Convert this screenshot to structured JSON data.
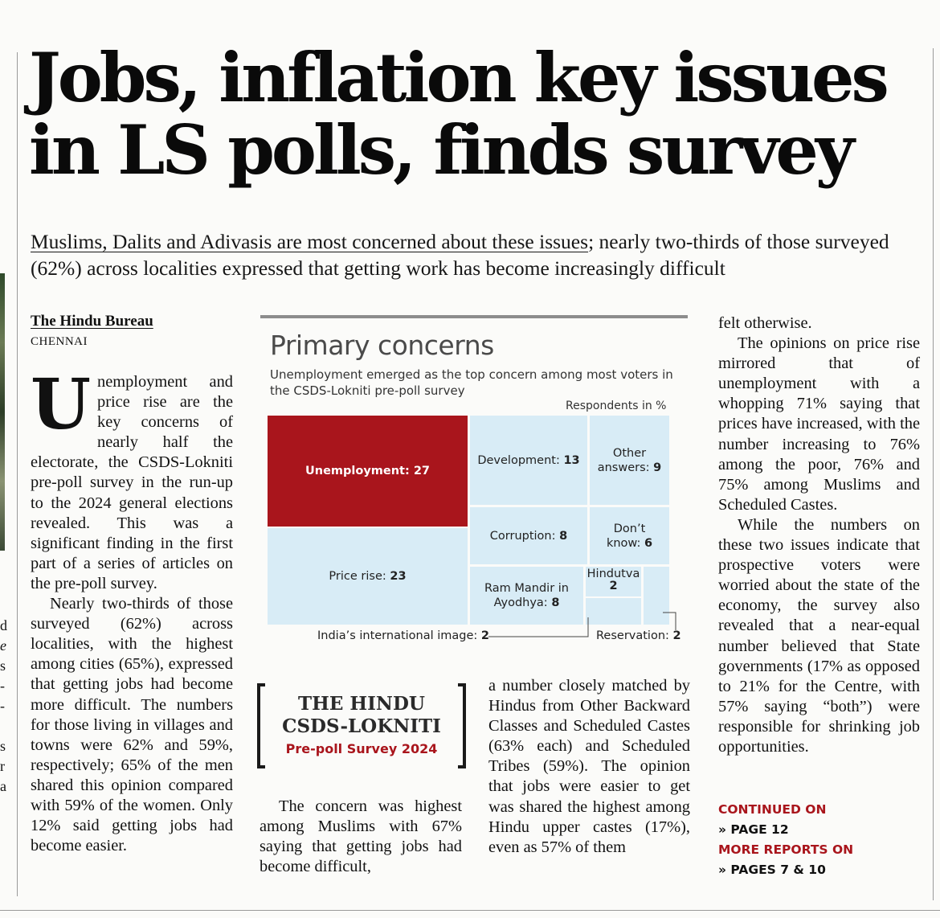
{
  "headline": {
    "line1": "Jobs, inflation key issues",
    "line2": "in LS polls, finds survey"
  },
  "deck": {
    "underlined": "Muslims, Dalits and Adivasis are most concerned about these issues",
    "rest": "; nearly two-thirds of those surveyed (62%) across localities expressed that getting work has become increasingly difficult"
  },
  "byline": "The Hindu Bureau",
  "dateline": "CHENNAI",
  "left_edge_fragments": [
    "d",
    "e",
    "s",
    "-",
    "-",
    "s",
    "r",
    "a"
  ],
  "col1": {
    "dropcap": "U",
    "p1": "nemployment and price rise are the key concerns of nearly half the electorate, the CSDS-Lokniti pre-poll survey in the run-up to the 2024 general elections revealed. This was a significant finding in the first part of a series of articles on the pre-poll survey.",
    "p2": "Nearly two-thirds of those surveyed (62%) across localities, with the highest among cities (65%), expressed that getting jobs had become more difficult. The numbers for those living in villages and towns were 62% and 59%, respectively; 65% of the men shared this opinion compared with 59% of the women. Only 12% said getting jobs had become easier."
  },
  "logo": {
    "line1": "THE HINDU",
    "line2": "CSDS-LOKNITI",
    "line3": "Pre-poll Survey 2024"
  },
  "col2": {
    "p1": "The concern was highest among Muslims with 67% saying that getting jobs had become difficult,"
  },
  "col3": {
    "p1": "a number closely matched by Hindus from Other Backward Classes and Scheduled Castes (63% each) and Scheduled Tribes (59%). The opinion that jobs were easier to get was shared the highest among Hindu upper castes (17%), even as 57% of them"
  },
  "col4": {
    "p0": "felt otherwise.",
    "p1": "The opinions on price rise mirrored that of unemployment with a whopping 71% saying that prices have increased, with the number increasing to 76% among the poor, 76% and 75% among Muslims and Scheduled Castes.",
    "p2": "While the numbers on these two issues indicate that prospective voters were worried about the state of the economy, the survey also revealed that a near-equal number believed that State governments (17% as opposed to 21% for the Centre, with 57% saying “both”) were responsible for shrinking job opportunities."
  },
  "continued": {
    "label1": "CONTINUED ON",
    "page1": "» PAGE 12",
    "label2": "MORE REPORTS ON",
    "page2": "» PAGES 7 & 10"
  },
  "colors": {
    "highlight": "#a9151c",
    "tile": "#d8ecf6"
  },
  "chart_data": {
    "type": "treemap",
    "title": "Primary concerns",
    "subtitle": "Unemployment emerged as the top concern among most voters in the CSDS-Lokniti pre-poll survey",
    "unit": "Respondents in %",
    "categories": [
      "Unemployment",
      "Price rise",
      "Development",
      "Other answers",
      "Corruption",
      "Don’t know",
      "Ram Mandir in Ayodhya",
      "Hindutva",
      "India’s international image",
      "Reservation"
    ],
    "values": [
      27,
      23,
      13,
      9,
      8,
      6,
      8,
      2,
      2,
      2
    ],
    "labels": {
      "unemployment": "Unemployment:",
      "price_rise": "Price rise:",
      "development": "Development:",
      "other_1": "Other",
      "other_2": "answers:",
      "corruption": "Corruption:",
      "dont_know_1": "Don’t",
      "dont_know_2": "know:",
      "ram_mandir_1": "Ram Mandir in",
      "ram_mandir_2": "Ayodhya:",
      "hindutva": "Hindutva",
      "intl_image": "India’s international image:",
      "reservation": "Reservation:"
    },
    "highlight_category": "Unemployment"
  }
}
